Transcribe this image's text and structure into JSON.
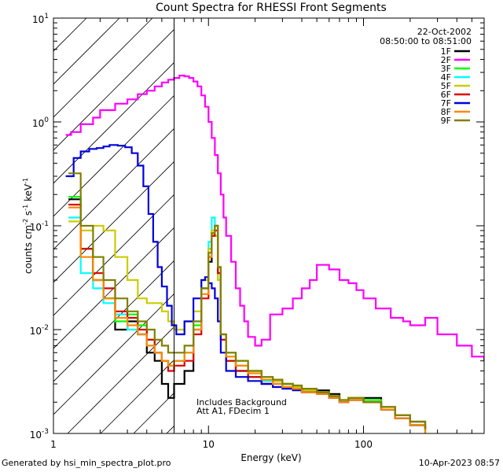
{
  "chart_data": {
    "type": "line",
    "title": "Count Spectra for RHESSI Front Segments",
    "xlabel": "Energy (keV)",
    "ylabel": "counts cm^-2 s^-1 keV^-1",
    "x_scale": "log",
    "y_scale": "log",
    "xlim": [
      1,
      600
    ],
    "ylim": [
      0.001,
      10
    ],
    "x_ticks": [
      {
        "value": 1,
        "label": "1"
      },
      {
        "value": 10,
        "label": "10"
      },
      {
        "value": 100,
        "label": "100"
      }
    ],
    "y_ticks": [
      {
        "value": 0.001,
        "base": "10",
        "exp": "-3"
      },
      {
        "value": 0.01,
        "base": "10",
        "exp": "-2"
      },
      {
        "value": 0.1,
        "base": "10",
        "exp": "-1"
      },
      {
        "value": 1,
        "base": "10",
        "exp": "0"
      },
      {
        "value": 10,
        "base": "10",
        "exp": "1"
      }
    ],
    "attenuated_region_keV": [
      1,
      6
    ],
    "date": "22-Oct-2002",
    "time_range": "08:50:00 to 08:51:00",
    "annotation_lines": [
      "Includes Background",
      "Att A1, FDecim 1"
    ],
    "series": [
      {
        "name": "1F",
        "color": "#000000",
        "x": [
          1.25,
          1.5,
          1.8,
          2.1,
          2.5,
          3.0,
          3.5,
          4.0,
          4.5,
          5.0,
          5.5,
          6.0,
          7.0,
          8.0,
          9.0,
          10.0,
          10.5,
          11.0,
          11.5,
          12.0,
          13.0,
          15.0,
          18.0,
          22.0,
          26.0,
          30.0,
          35.0,
          40.0,
          50.0,
          60.0,
          70.0,
          80.0,
          100.0,
          130.0,
          160.0,
          200.0,
          250.0
        ],
        "y": [
          0.18,
          0.06,
          0.03,
          0.02,
          0.01,
          0.012,
          0.009,
          0.006,
          0.005,
          0.003,
          0.0022,
          0.003,
          0.004,
          0.01,
          0.025,
          0.045,
          0.08,
          0.1,
          0.035,
          0.008,
          0.005,
          0.004,
          0.0035,
          0.003,
          0.0032,
          0.003,
          0.0028,
          0.0025,
          0.0026,
          0.0024,
          0.002,
          0.0022,
          0.0022,
          0.0018,
          0.0015,
          0.0013,
          0.0012
        ]
      },
      {
        "name": "2F",
        "color": "#ff00ff",
        "x": [
          1.2,
          1.3,
          1.5,
          1.8,
          2.0,
          2.5,
          3.0,
          3.5,
          4.0,
          4.5,
          5.0,
          5.5,
          6.0,
          6.5,
          7.0,
          7.5,
          8.0,
          8.5,
          9.0,
          9.5,
          10.0,
          10.5,
          11.0,
          11.5,
          12.0,
          12.5,
          13.0,
          14.0,
          15.0,
          16.0,
          17.0,
          18.0,
          20.0,
          22.0,
          25.0,
          30.0,
          35.0,
          40.0,
          45.0,
          50.0,
          60.0,
          70.0,
          80.0,
          90.0,
          100.0,
          120.0,
          150.0,
          180.0,
          200.0,
          250.0,
          300.0,
          400.0,
          500.0,
          600.0
        ],
        "y": [
          0.75,
          0.8,
          0.95,
          1.1,
          1.3,
          1.5,
          1.65,
          1.85,
          2.0,
          2.2,
          2.4,
          2.55,
          2.65,
          2.8,
          2.75,
          2.65,
          2.45,
          2.2,
          1.8,
          1.4,
          1.0,
          0.7,
          0.48,
          0.32,
          0.2,
          0.12,
          0.08,
          0.045,
          0.025,
          0.017,
          0.012,
          0.0085,
          0.007,
          0.008,
          0.014,
          0.016,
          0.02,
          0.025,
          0.03,
          0.042,
          0.038,
          0.03,
          0.028,
          0.024,
          0.02,
          0.016,
          0.013,
          0.012,
          0.011,
          0.013,
          0.009,
          0.007,
          0.0055,
          0.005
        ]
      },
      {
        "name": "3F",
        "color": "#00ff00",
        "x": [
          1.25,
          1.5,
          1.8,
          2.1,
          2.5,
          3.0,
          3.5,
          4.0,
          4.5,
          5.0,
          5.5,
          6.0,
          7.0,
          8.0,
          9.0,
          10.0,
          10.5,
          11.0,
          11.5,
          12.0,
          13.0,
          15.0,
          18.0,
          22.0,
          26.0,
          30.0,
          35.0,
          40.0,
          50.0,
          60.0,
          70.0,
          80.0,
          100.0,
          130.0,
          160.0,
          200.0,
          250.0
        ],
        "y": [
          0.19,
          0.06,
          0.03,
          0.02,
          0.012,
          0.014,
          0.011,
          0.008,
          0.006,
          0.005,
          0.0045,
          0.005,
          0.006,
          0.011,
          0.025,
          0.06,
          0.09,
          0.1,
          0.04,
          0.009,
          0.006,
          0.005,
          0.004,
          0.0035,
          0.0033,
          0.003,
          0.0028,
          0.0026,
          0.0025,
          0.0022,
          0.002,
          0.0022,
          0.0021,
          0.0017,
          0.0014,
          0.0012,
          0.0011
        ]
      },
      {
        "name": "4F",
        "color": "#00ffff",
        "x": [
          1.25,
          1.5,
          1.8,
          2.1,
          2.5,
          3.0,
          3.5,
          4.0,
          4.5,
          5.0,
          5.5,
          6.0,
          7.0,
          8.0,
          9.0,
          10.0,
          10.5,
          11.0,
          11.5,
          12.0,
          13.0,
          15.0,
          18.0,
          22.0,
          26.0,
          30.0,
          35.0,
          40.0,
          50.0,
          60.0,
          70.0,
          80.0,
          100.0,
          130.0,
          160.0,
          200.0,
          250.0
        ],
        "y": [
          0.12,
          0.035,
          0.025,
          0.018,
          0.014,
          0.01,
          0.009,
          0.007,
          0.006,
          0.005,
          0.0045,
          0.005,
          0.006,
          0.012,
          0.03,
          0.07,
          0.12,
          0.08,
          0.03,
          0.008,
          0.005,
          0.004,
          0.0035,
          0.0032,
          0.003,
          0.0028,
          0.0027,
          0.0025,
          0.0024,
          0.0022,
          0.002,
          0.0021,
          0.002,
          0.0017,
          0.0014,
          0.0012,
          0.0011
        ]
      },
      {
        "name": "5F",
        "color": "#cccc00",
        "x": [
          1.25,
          1.5,
          1.8,
          2.1,
          2.5,
          3.0,
          3.5,
          4.0,
          4.5,
          5.0,
          5.5,
          6.0,
          7.0,
          8.0,
          9.0,
          10.0,
          10.5,
          11.0,
          11.5,
          12.0,
          13.0,
          15.0,
          18.0,
          22.0,
          26.0,
          30.0,
          35.0,
          40.0,
          50.0,
          60.0,
          70.0,
          80.0,
          100.0,
          130.0,
          160.0,
          200.0,
          250.0
        ],
        "y": [
          0.11,
          0.09,
          0.1,
          0.09,
          0.05,
          0.03,
          0.02,
          0.018,
          0.018,
          0.015,
          0.012,
          0.01,
          0.012,
          0.015,
          0.03,
          0.06,
          0.09,
          0.08,
          0.03,
          0.008,
          0.005,
          0.0045,
          0.004,
          0.0035,
          0.0032,
          0.003,
          0.0028,
          0.0026,
          0.0025,
          0.0023,
          0.0021,
          0.0022,
          0.002,
          0.0018,
          0.0015,
          0.0013,
          0.0011
        ]
      },
      {
        "name": "6F",
        "color": "#dd0000",
        "x": [
          1.25,
          1.5,
          1.8,
          2.1,
          2.5,
          3.0,
          3.5,
          4.0,
          4.5,
          5.0,
          5.5,
          6.0,
          7.0,
          8.0,
          9.0,
          10.0,
          10.5,
          11.0,
          11.5,
          12.0,
          13.0,
          15.0,
          18.0,
          22.0,
          26.0,
          30.0,
          35.0,
          40.0,
          50.0,
          60.0,
          70.0,
          80.0,
          100.0,
          130.0,
          160.0,
          200.0,
          250.0
        ],
        "y": [
          0.16,
          0.06,
          0.035,
          0.025,
          0.015,
          0.013,
          0.01,
          0.008,
          0.006,
          0.005,
          0.004,
          0.0045,
          0.005,
          0.009,
          0.02,
          0.05,
          0.08,
          0.09,
          0.035,
          0.008,
          0.005,
          0.004,
          0.0035,
          0.003,
          0.003,
          0.0028,
          0.0027,
          0.0025,
          0.0024,
          0.0022,
          0.002,
          0.0021,
          0.002,
          0.0017,
          0.0014,
          0.0012,
          0.001
        ]
      },
      {
        "name": "7F",
        "color": "#0000dd",
        "x": [
          1.2,
          1.35,
          1.5,
          1.7,
          1.9,
          2.1,
          2.3,
          2.6,
          2.9,
          3.2,
          3.5,
          3.8,
          4.1,
          4.4,
          4.7,
          5.0,
          5.4,
          5.8,
          6.2,
          7.0,
          8.0,
          9.0,
          9.5,
          10.0,
          10.5,
          11.0,
          11.5,
          12.0,
          13.0,
          15.0,
          18.0,
          22.0,
          26.0,
          30.0,
          35.0,
          40.0,
          50.0,
          60.0,
          70.0,
          80.0,
          100.0,
          130.0,
          160.0,
          200.0,
          250.0
        ],
        "y": [
          0.3,
          0.45,
          0.52,
          0.55,
          0.56,
          0.58,
          0.6,
          0.59,
          0.57,
          0.5,
          0.38,
          0.24,
          0.13,
          0.07,
          0.04,
          0.026,
          0.017,
          0.011,
          0.009,
          0.012,
          0.02,
          0.03,
          0.032,
          0.028,
          0.025,
          0.02,
          0.012,
          0.006,
          0.004,
          0.0035,
          0.0032,
          0.003,
          0.0028,
          0.0027,
          0.0026,
          0.0025,
          0.0024,
          0.0022,
          0.002,
          0.0021,
          0.002,
          0.0017,
          0.0014,
          0.0012,
          0.0011
        ]
      },
      {
        "name": "8F",
        "color": "#ff8800",
        "x": [
          1.25,
          1.5,
          1.8,
          2.1,
          2.5,
          3.0,
          3.5,
          4.0,
          4.5,
          5.0,
          5.5,
          6.0,
          7.0,
          8.0,
          9.0,
          10.0,
          10.5,
          11.0,
          11.5,
          12.0,
          13.0,
          15.0,
          18.0,
          22.0,
          26.0,
          30.0,
          35.0,
          40.0,
          50.0,
          60.0,
          70.0,
          80.0,
          100.0,
          130.0,
          160.0,
          200.0,
          250.0
        ],
        "y": [
          0.15,
          0.05,
          0.03,
          0.02,
          0.013,
          0.011,
          0.009,
          0.007,
          0.006,
          0.005,
          0.0045,
          0.005,
          0.006,
          0.01,
          0.022,
          0.05,
          0.085,
          0.1,
          0.04,
          0.009,
          0.0055,
          0.0045,
          0.0038,
          0.0033,
          0.003,
          0.0028,
          0.0027,
          0.0025,
          0.0024,
          0.0022,
          0.002,
          0.0021,
          0.002,
          0.0017,
          0.0014,
          0.0012,
          0.001
        ]
      },
      {
        "name": "9F",
        "color": "#808000",
        "x": [
          1.25,
          1.5,
          1.8,
          2.1,
          2.5,
          3.0,
          3.5,
          4.0,
          4.5,
          5.0,
          5.5,
          6.0,
          7.0,
          8.0,
          9.0,
          10.0,
          10.5,
          11.0,
          11.5,
          12.0,
          13.0,
          15.0,
          18.0,
          22.0,
          26.0,
          30.0,
          35.0,
          40.0,
          50.0,
          60.0,
          70.0,
          80.0,
          100.0,
          130.0,
          160.0,
          200.0,
          250.0
        ],
        "y": [
          0.32,
          0.1,
          0.05,
          0.03,
          0.02,
          0.015,
          0.012,
          0.01,
          0.008,
          0.007,
          0.006,
          0.006,
          0.007,
          0.012,
          0.025,
          0.055,
          0.085,
          0.1,
          0.04,
          0.009,
          0.006,
          0.005,
          0.004,
          0.0035,
          0.0033,
          0.003,
          0.0029,
          0.0027,
          0.0025,
          0.0023,
          0.0021,
          0.0022,
          0.002,
          0.0018,
          0.0015,
          0.0013,
          0.0011
        ]
      }
    ]
  },
  "footer": {
    "generated_by": "Generated by hsi_min_spectra_plot.pro",
    "timestamp": "10-Apr-2023 08:57"
  }
}
